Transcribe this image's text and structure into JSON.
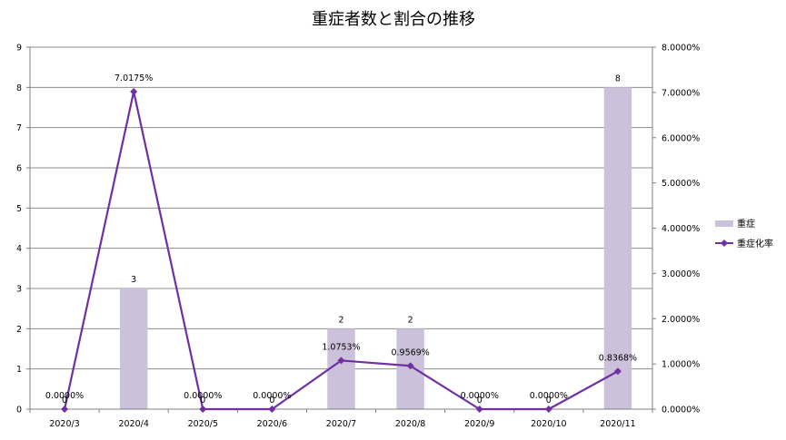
{
  "chart_data": {
    "type": "bar",
    "title": "重症者数と割合の推移",
    "categories": [
      "2020/3",
      "2020/4",
      "2020/5",
      "2020/6",
      "2020/7",
      "2020/8",
      "2020/9",
      "2020/10",
      "2020/11"
    ],
    "series": [
      {
        "name": "重症",
        "type": "bar",
        "axis": "left",
        "color": "#ccc1da",
        "values": [
          0,
          3,
          0,
          0,
          2,
          2,
          0,
          0,
          8
        ],
        "labels": [
          "0",
          "3",
          "0",
          "0",
          "2",
          "2",
          "0",
          "0",
          "8"
        ]
      },
      {
        "name": "重症化率",
        "type": "line",
        "axis": "right",
        "color": "#7030a0",
        "marker": "diamond",
        "values": [
          0,
          7.0175,
          0,
          0,
          1.0753,
          0.9569,
          0,
          0,
          0.8368
        ],
        "labels": [
          "0.0000%",
          "7.0175%",
          "0.0000%",
          "0.0000%",
          "1.0753%",
          "0.9569%",
          "0.0000%",
          "0.0000%",
          "0.8368%"
        ]
      }
    ],
    "y_left": {
      "ylim": [
        0,
        9
      ],
      "ticks": [
        0,
        1,
        2,
        3,
        4,
        5,
        6,
        7,
        8,
        9
      ],
      "tick_labels": [
        "0",
        "1",
        "2",
        "3",
        "4",
        "5",
        "6",
        "7",
        "8",
        "9"
      ]
    },
    "y_right": {
      "ylim": [
        0,
        8
      ],
      "ticks": [
        0,
        1,
        2,
        3,
        4,
        5,
        6,
        7,
        8
      ],
      "tick_labels": [
        "0.0000%",
        "1.0000%",
        "2.0000%",
        "3.0000%",
        "4.0000%",
        "5.0000%",
        "6.0000%",
        "7.0000%",
        "8.0000%"
      ]
    },
    "grid": true,
    "legend": "right"
  }
}
